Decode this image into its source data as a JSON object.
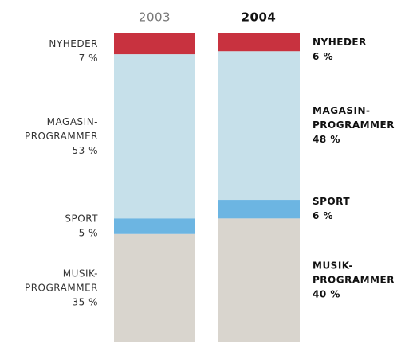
{
  "chart_data": {
    "type": "stacked_bar",
    "categories": [
      "2003",
      "2004"
    ],
    "ylim": [
      0,
      100
    ],
    "series": [
      {
        "name": [
          "NYHEDER"
        ],
        "color": "#c8323f",
        "values": [
          7,
          6
        ],
        "value_labels": [
          "7 %",
          "6 %"
        ]
      },
      {
        "name": [
          "MAGASIN-",
          "PROGRAMMER"
        ],
        "color": "#c6e0ea",
        "values": [
          53,
          48
        ],
        "value_labels": [
          "53 %",
          "48 %"
        ]
      },
      {
        "name": [
          "SPORT"
        ],
        "color": "#6cb5e2",
        "values": [
          5,
          6
        ],
        "value_labels": [
          "5 %",
          "6 %"
        ]
      },
      {
        "name": [
          "MUSIK-",
          "PROGRAMMER"
        ],
        "color": "#d9d5ce",
        "values": [
          35,
          40
        ],
        "value_labels": [
          "35 %",
          "40 %"
        ]
      }
    ]
  }
}
